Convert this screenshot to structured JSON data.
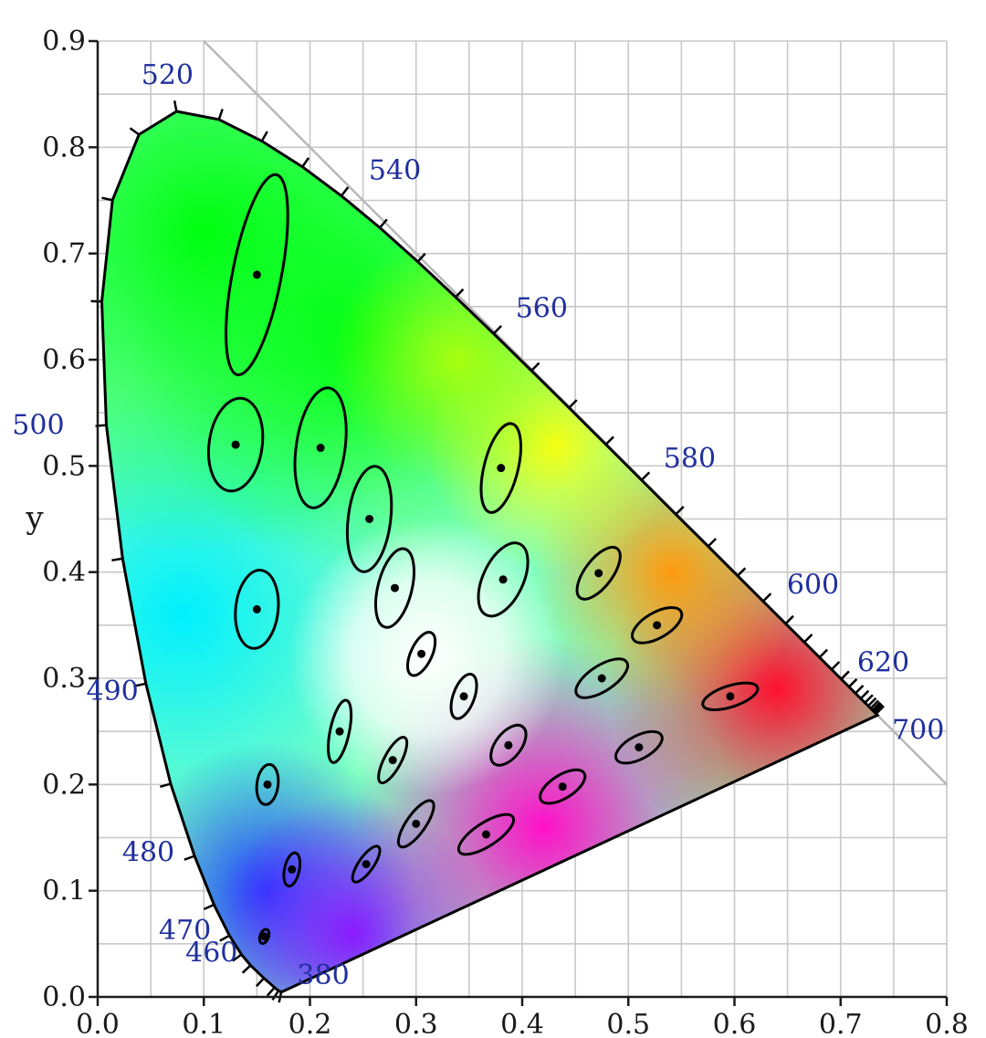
{
  "chart_data": {
    "type": "scatter",
    "ylabel": "y",
    "xlabel": "",
    "xlim": [
      0.0,
      0.8
    ],
    "ylim": [
      0.0,
      0.9
    ],
    "grid": true,
    "x_ticks": [
      "0.0",
      "0.1",
      "0.2",
      "0.3",
      "0.4",
      "0.5",
      "0.6",
      "0.7",
      "0.8"
    ],
    "y_ticks": [
      "0.0",
      "0.1",
      "0.2",
      "0.3",
      "0.4",
      "0.5",
      "0.6",
      "0.7",
      "0.8",
      "0.9"
    ],
    "wavelength_labels": [
      {
        "text": "380",
        "x": 0.1741,
        "y": 0.005
      },
      {
        "text": "460",
        "x": 0.144,
        "y": 0.0297
      },
      {
        "text": "470",
        "x": 0.1241,
        "y": 0.0578
      },
      {
        "text": "480",
        "x": 0.0913,
        "y": 0.1327
      },
      {
        "text": "490",
        "x": 0.0454,
        "y": 0.295
      },
      {
        "text": "500",
        "x": 0.0082,
        "y": 0.5384
      },
      {
        "text": "520",
        "x": 0.0743,
        "y": 0.8338
      },
      {
        "text": "540",
        "x": 0.2296,
        "y": 0.7543
      },
      {
        "text": "560",
        "x": 0.3731,
        "y": 0.6245
      },
      {
        "text": "580",
        "x": 0.5125,
        "y": 0.4866
      },
      {
        "text": "600",
        "x": 0.627,
        "y": 0.3725
      },
      {
        "text": "620",
        "x": 0.6915,
        "y": 0.3083
      },
      {
        "text": "700",
        "x": 0.7347,
        "y": 0.2653
      }
    ],
    "locus": [
      [
        0.1741,
        0.005
      ],
      [
        0.173,
        0.0048
      ],
      [
        0.1703,
        0.0058
      ],
      [
        0.1666,
        0.0089
      ],
      [
        0.1566,
        0.0177
      ],
      [
        0.144,
        0.0297
      ],
      [
        0.1355,
        0.0399
      ],
      [
        0.1241,
        0.0578
      ],
      [
        0.1096,
        0.0868
      ],
      [
        0.0913,
        0.1327
      ],
      [
        0.0687,
        0.2007
      ],
      [
        0.0454,
        0.295
      ],
      [
        0.0235,
        0.4127
      ],
      [
        0.0082,
        0.5384
      ],
      [
        0.0039,
        0.6548
      ],
      [
        0.0139,
        0.7502
      ],
      [
        0.0389,
        0.812
      ],
      [
        0.0743,
        0.8338
      ],
      [
        0.1142,
        0.8262
      ],
      [
        0.1547,
        0.8059
      ],
      [
        0.1929,
        0.7816
      ],
      [
        0.2296,
        0.7543
      ],
      [
        0.2658,
        0.7243
      ],
      [
        0.3016,
        0.6923
      ],
      [
        0.3373,
        0.6589
      ],
      [
        0.3731,
        0.6245
      ],
      [
        0.4087,
        0.5896
      ],
      [
        0.4441,
        0.5547
      ],
      [
        0.4788,
        0.5202
      ],
      [
        0.5125,
        0.4866
      ],
      [
        0.5448,
        0.4544
      ],
      [
        0.5752,
        0.4242
      ],
      [
        0.6029,
        0.3965
      ],
      [
        0.627,
        0.3725
      ],
      [
        0.6482,
        0.3514
      ],
      [
        0.6658,
        0.334
      ],
      [
        0.6801,
        0.3197
      ],
      [
        0.6915,
        0.3083
      ],
      [
        0.7006,
        0.2993
      ],
      [
        0.7079,
        0.292
      ],
      [
        0.714,
        0.2859
      ],
      [
        0.719,
        0.2809
      ],
      [
        0.723,
        0.277
      ],
      [
        0.726,
        0.274
      ],
      [
        0.7283,
        0.2717
      ],
      [
        0.73,
        0.27
      ],
      [
        0.7311,
        0.2689
      ],
      [
        0.732,
        0.268
      ],
      [
        0.7334,
        0.2666
      ],
      [
        0.7347,
        0.2653
      ]
    ],
    "ellipses": [
      {
        "cx": 0.15,
        "cy": 0.68,
        "a": 0.096,
        "b": 0.023,
        "angle": 79
      },
      {
        "cx": 0.21,
        "cy": 0.517,
        "a": 0.057,
        "b": 0.023,
        "angle": 82
      },
      {
        "cx": 0.13,
        "cy": 0.52,
        "a": 0.044,
        "b": 0.025,
        "angle": 82
      },
      {
        "cx": 0.256,
        "cy": 0.45,
        "a": 0.05,
        "b": 0.02,
        "angle": 83
      },
      {
        "cx": 0.28,
        "cy": 0.385,
        "a": 0.038,
        "b": 0.016,
        "angle": 76
      },
      {
        "cx": 0.15,
        "cy": 0.365,
        "a": 0.037,
        "b": 0.02,
        "angle": 84
      },
      {
        "cx": 0.305,
        "cy": 0.323,
        "a": 0.022,
        "b": 0.01,
        "angle": 65
      },
      {
        "cx": 0.38,
        "cy": 0.498,
        "a": 0.043,
        "b": 0.016,
        "angle": 76
      },
      {
        "cx": 0.382,
        "cy": 0.393,
        "a": 0.037,
        "b": 0.019,
        "angle": 65
      },
      {
        "cx": 0.472,
        "cy": 0.399,
        "a": 0.029,
        "b": 0.013,
        "angle": 53
      },
      {
        "cx": 0.527,
        "cy": 0.35,
        "a": 0.026,
        "b": 0.012,
        "angle": 30
      },
      {
        "cx": 0.475,
        "cy": 0.3,
        "a": 0.028,
        "b": 0.012,
        "angle": 33
      },
      {
        "cx": 0.596,
        "cy": 0.283,
        "a": 0.027,
        "b": 0.01,
        "angle": 18
      },
      {
        "cx": 0.345,
        "cy": 0.283,
        "a": 0.022,
        "b": 0.01,
        "angle": 70
      },
      {
        "cx": 0.228,
        "cy": 0.25,
        "a": 0.03,
        "b": 0.009,
        "angle": 78
      },
      {
        "cx": 0.278,
        "cy": 0.223,
        "a": 0.024,
        "b": 0.008,
        "angle": 62
      },
      {
        "cx": 0.387,
        "cy": 0.237,
        "a": 0.022,
        "b": 0.012,
        "angle": 52
      },
      {
        "cx": 0.51,
        "cy": 0.235,
        "a": 0.024,
        "b": 0.011,
        "angle": 28
      },
      {
        "cx": 0.16,
        "cy": 0.2,
        "a": 0.019,
        "b": 0.01,
        "angle": 83
      },
      {
        "cx": 0.438,
        "cy": 0.198,
        "a": 0.024,
        "b": 0.011,
        "angle": 32
      },
      {
        "cx": 0.3,
        "cy": 0.163,
        "a": 0.026,
        "b": 0.009,
        "angle": 55
      },
      {
        "cx": 0.366,
        "cy": 0.153,
        "a": 0.03,
        "b": 0.011,
        "angle": 33
      },
      {
        "cx": 0.183,
        "cy": 0.12,
        "a": 0.016,
        "b": 0.007,
        "angle": 78
      },
      {
        "cx": 0.253,
        "cy": 0.125,
        "a": 0.02,
        "b": 0.007,
        "angle": 55
      },
      {
        "cx": 0.157,
        "cy": 0.057,
        "a": 0.007,
        "b": 0.004,
        "angle": 70
      }
    ],
    "colors": {
      "grid": "#c8c8c8",
      "axis": "#1a1a1a",
      "tick_label": "#1a1a1a",
      "wavelength_label": "#1f2f9e",
      "line_of_purples_ref": "#b8b8b8",
      "ellipse": "#000000",
      "centroid": "#000000"
    }
  }
}
